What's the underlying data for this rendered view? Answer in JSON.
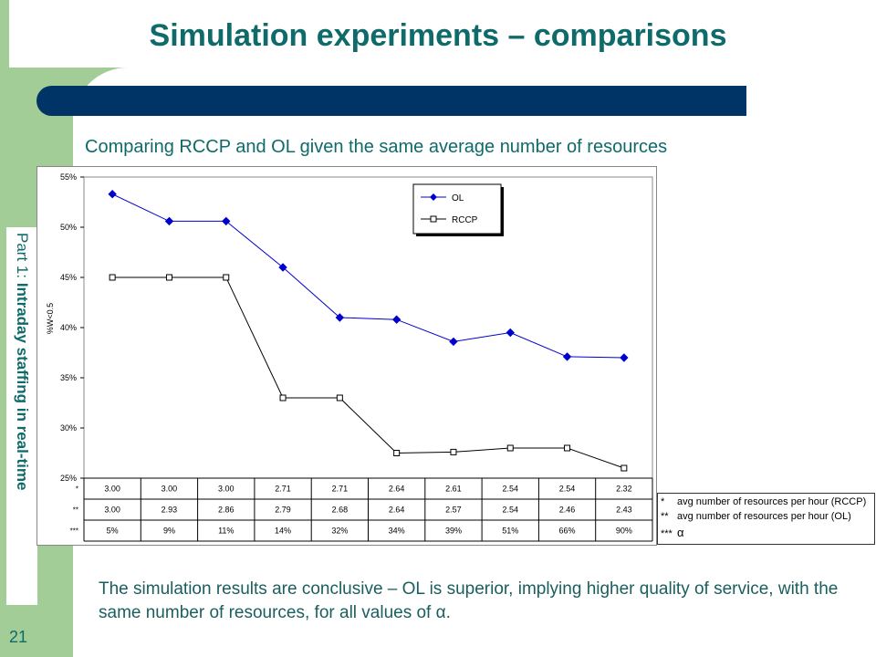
{
  "slide": {
    "title": "Simulation experiments – comparisons",
    "subtitle": "Comparing RCCP and OL given the same average number of resources",
    "section_prefix": "Part 1: ",
    "section_title": "Intraday staffing in real-time",
    "page_number": "21",
    "conclusion": "The simulation results are conclusive – OL is superior, implying higher quality of service, with the same number of resources, for all values of α."
  },
  "colors": {
    "title": "#0f6a6a",
    "accent_bar": "#003366",
    "sidebar": "#a3cd96",
    "ol_series": "#0000cc",
    "rccp_series": "#000000"
  },
  "chart_data": {
    "type": "line",
    "ylabel": "%W<0.5",
    "ylim": [
      25,
      55
    ],
    "yticks": [
      "25%",
      "30%",
      "35%",
      "40%",
      "45%",
      "50%",
      "55%"
    ],
    "legend_position": "top-right",
    "series": [
      {
        "name": "OL",
        "marker": "diamond",
        "values": [
          53.3,
          50.6,
          50.6,
          46.0,
          41.0,
          40.8,
          38.6,
          39.5,
          37.1,
          37.0
        ]
      },
      {
        "name": "RCCP",
        "marker": "square",
        "values": [
          45.0,
          45.0,
          45.0,
          33.0,
          33.0,
          27.5,
          27.6,
          28.0,
          28.0,
          26.0
        ]
      }
    ],
    "table": {
      "row_markers": [
        "*",
        "**",
        "***"
      ],
      "rows": [
        [
          "3.00",
          "3.00",
          "3.00",
          "2.71",
          "2.71",
          "2.64",
          "2.61",
          "2.54",
          "2.54",
          "2.32"
        ],
        [
          "3.00",
          "2.93",
          "2.86",
          "2.79",
          "2.68",
          "2.64",
          "2.57",
          "2.54",
          "2.46",
          "2.43"
        ],
        [
          "5%",
          "9%",
          "11%",
          "14%",
          "32%",
          "34%",
          "39%",
          "51%",
          "66%",
          "90%"
        ]
      ]
    },
    "footnotes": [
      {
        "marker": "*",
        "text": "avg number of resources per hour (RCCP)"
      },
      {
        "marker": "**",
        "text": "avg number of resources per hour (OL)"
      },
      {
        "marker": "***",
        "text": "α"
      }
    ]
  }
}
